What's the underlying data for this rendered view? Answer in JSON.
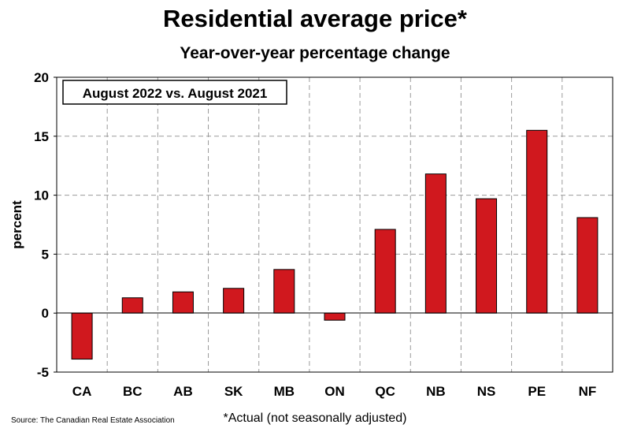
{
  "chart_data": {
    "type": "bar",
    "title": "Residential average price*",
    "subtitle": "Year-over-year percentage change",
    "ylabel": "percent",
    "xlabel": "",
    "categories": [
      "CA",
      "BC",
      "AB",
      "SK",
      "MB",
      "ON",
      "QC",
      "NB",
      "NS",
      "PE",
      "NF"
    ],
    "values": [
      -3.9,
      1.3,
      1.8,
      2.1,
      3.7,
      -0.6,
      7.1,
      11.8,
      9.7,
      15.5,
      8.1
    ],
    "ylim": [
      -5,
      20
    ],
    "yticks": [
      -5,
      0,
      5,
      10,
      15,
      20
    ],
    "annotation": "August 2022 vs. August 2021",
    "bar_color": "#d0181e",
    "grid": true,
    "legend": "none"
  },
  "footnote": "*Actual (not seasonally adjusted)",
  "source": "Source: The Canadian Real Estate Association"
}
